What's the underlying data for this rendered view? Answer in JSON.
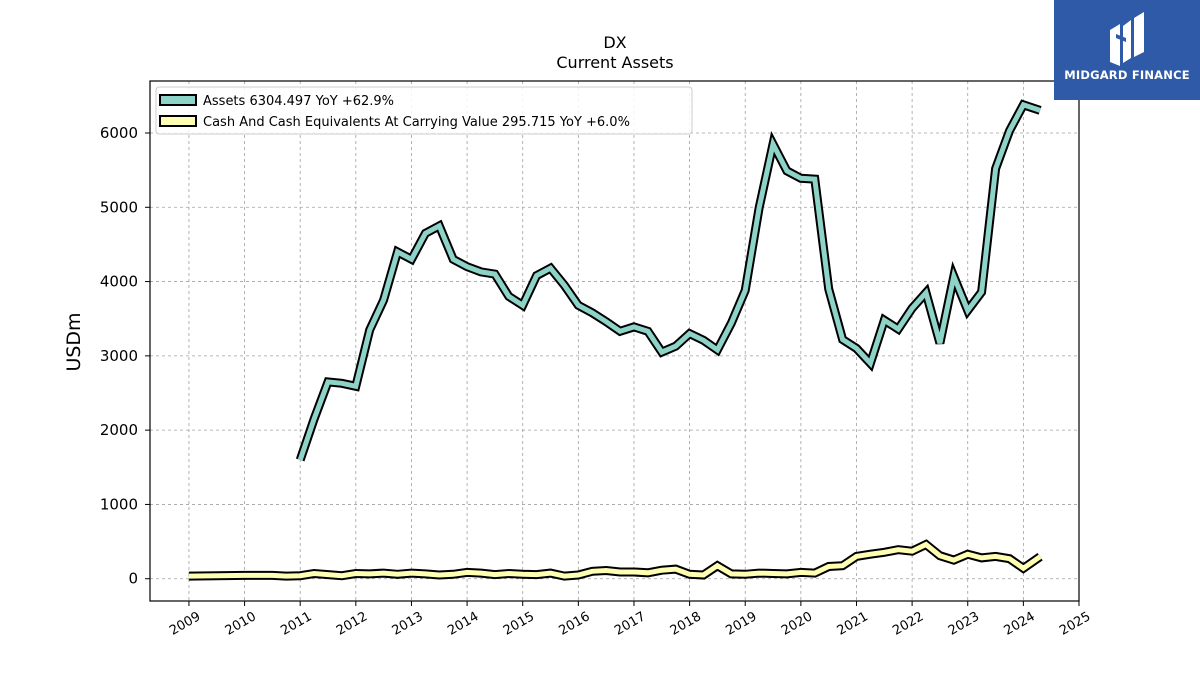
{
  "brand": {
    "name": "MIDGARD FINANCE",
    "bg_color": "#2f5aa8",
    "mark_icon": "midgard-logo-icon"
  },
  "chart_data": {
    "type": "line",
    "title": "DX",
    "subtitle": "Current  Assets",
    "ylabel": "USDm",
    "xlabel": "",
    "ylim": [
      -300,
      6700
    ],
    "xlim": [
      2008.3,
      2025.0
    ],
    "yticks": [
      0,
      1000,
      2000,
      3000,
      4000,
      5000,
      6000
    ],
    "xticks": [
      "2009",
      "2010",
      "2011",
      "2012",
      "2013",
      "2014",
      "2015",
      "2016",
      "2017",
      "2018",
      "2019",
      "2020",
      "2021",
      "2022",
      "2023",
      "2024",
      "2025"
    ],
    "grid": true,
    "legend_position": "top-left",
    "series": [
      {
        "name": "Assets  6304.497 YoY +62.9%",
        "color": "#8dd3c7",
        "x": [
          2011.0,
          2011.25,
          2011.5,
          2011.75,
          2012.0,
          2012.25,
          2012.5,
          2012.75,
          2013.0,
          2013.25,
          2013.5,
          2013.75,
          2014.0,
          2014.25,
          2014.5,
          2014.75,
          2015.0,
          2015.25,
          2015.5,
          2015.75,
          2016.0,
          2016.25,
          2016.5,
          2016.75,
          2017.0,
          2017.25,
          2017.5,
          2017.75,
          2018.0,
          2018.25,
          2018.5,
          2018.75,
          2019.0,
          2019.25,
          2019.5,
          2019.75,
          2020.0,
          2020.25,
          2020.5,
          2020.75,
          2021.0,
          2021.25,
          2021.5,
          2021.75,
          2022.0,
          2022.25,
          2022.5,
          2022.75,
          2023.0,
          2023.25,
          2023.5,
          2023.75,
          2024.0,
          2024.3
        ],
        "values": [
          1600,
          2150,
          2650,
          2630,
          2590,
          3350,
          3750,
          4400,
          4300,
          4650,
          4750,
          4300,
          4200,
          4130,
          4100,
          3800,
          3680,
          4080,
          4180,
          3950,
          3680,
          3580,
          3460,
          3330,
          3390,
          3330,
          3050,
          3130,
          3300,
          3210,
          3080,
          3440,
          3880,
          4990,
          5850,
          5490,
          5390,
          5380,
          3900,
          3220,
          3100,
          2900,
          3480,
          3360,
          3640,
          3850,
          3170,
          4070,
          3610,
          3860,
          5520,
          6030,
          6380,
          6304
        ]
      },
      {
        "name": "Cash And Cash Equivalents At Carrying Value  295.715 YoY +6.0%",
        "color": "#ffffb3",
        "x": [
          2009.0,
          2009.5,
          2010.0,
          2010.5,
          2010.75,
          2011.0,
          2011.25,
          2011.5,
          2011.75,
          2012.0,
          2012.25,
          2012.5,
          2012.75,
          2013.0,
          2013.25,
          2013.5,
          2013.75,
          2014.0,
          2014.25,
          2014.5,
          2014.75,
          2015.0,
          2015.25,
          2015.5,
          2015.75,
          2016.0,
          2016.25,
          2016.5,
          2016.75,
          2017.0,
          2017.25,
          2017.5,
          2017.75,
          2018.0,
          2018.25,
          2018.5,
          2018.75,
          2019.0,
          2019.25,
          2019.5,
          2019.75,
          2020.0,
          2020.25,
          2020.5,
          2020.75,
          2021.0,
          2021.25,
          2021.5,
          2021.75,
          2022.0,
          2022.25,
          2022.5,
          2022.75,
          2023.0,
          2023.25,
          2023.5,
          2023.75,
          2024.0,
          2024.3
        ],
        "values": [
          35,
          40,
          45,
          45,
          35,
          40,
          70,
          55,
          40,
          70,
          65,
          75,
          60,
          75,
          65,
          50,
          60,
          85,
          75,
          55,
          70,
          60,
          55,
          75,
          35,
          50,
          100,
          110,
          90,
          90,
          80,
          115,
          130,
          60,
          50,
          175,
          65,
          60,
          75,
          70,
          65,
          85,
          75,
          165,
          175,
          300,
          330,
          355,
          390,
          370,
          460,
          310,
          250,
          330,
          280,
          300,
          270,
          140,
          296
        ]
      }
    ]
  }
}
